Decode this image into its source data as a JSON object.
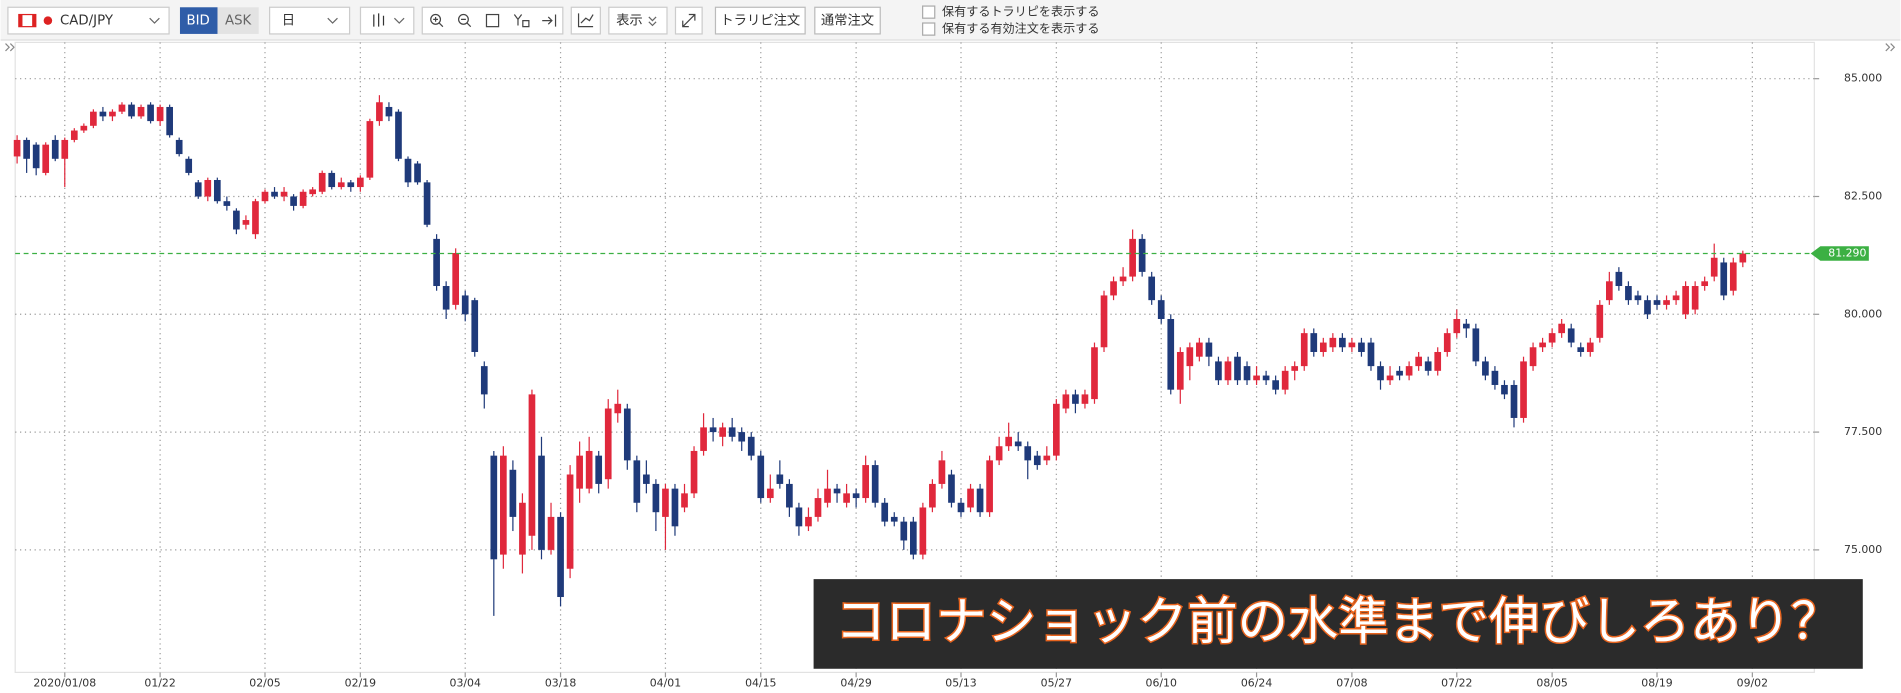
{
  "toolbar": {
    "pair": "CAD/JPY",
    "bid": "BID",
    "ask": "ASK",
    "timeframe": "日",
    "display": "表示",
    "trarip_order": "トラリピ注文",
    "normal_order": "通常注文",
    "checkboxes": [
      "保有するトラリピを表示する",
      "保有する有効注文を表示する"
    ]
  },
  "chart_data": {
    "type": "candlestick",
    "up_color": "#e0283c",
    "down_color": "#1f3a7a",
    "xlim": [
      -0.2,
      188.5
    ],
    "xticks": [
      {
        "value": 5,
        "label": "2020/01/08"
      },
      {
        "value": 15,
        "label": "01/22"
      },
      {
        "value": 26,
        "label": "02/05"
      },
      {
        "value": 36,
        "label": "02/19"
      },
      {
        "value": 47,
        "label": "03/04"
      },
      {
        "value": 57,
        "label": "03/18"
      },
      {
        "value": 68,
        "label": "04/01"
      },
      {
        "value": 78,
        "label": "04/15"
      },
      {
        "value": 88,
        "label": "04/29"
      },
      {
        "value": 99,
        "label": "05/13"
      },
      {
        "value": 109,
        "label": "05/27"
      },
      {
        "value": 120,
        "label": "06/10"
      },
      {
        "value": 130,
        "label": "06/24"
      },
      {
        "value": 140,
        "label": "07/08"
      },
      {
        "value": 151,
        "label": "07/22"
      },
      {
        "value": 161,
        "label": "08/05"
      },
      {
        "value": 172,
        "label": "08/19"
      },
      {
        "value": 182,
        "label": "09/02"
      }
    ],
    "ylim": [
      72.4,
      85.77
    ],
    "yticks": [
      {
        "value": 75,
        "label": "75.000"
      },
      {
        "value": 77.5,
        "label": "77.500"
      },
      {
        "value": 80,
        "label": "80.000"
      },
      {
        "value": 82.5,
        "label": "82.500"
      },
      {
        "value": 85,
        "label": "85.000"
      }
    ],
    "grid": true,
    "current_price": {
      "value": 81.29,
      "label": "81.290",
      "color": "#3cb043"
    },
    "annotation": "コロナショック前の水準まで伸びしろあり？",
    "open": [
      83.35,
      83.7,
      83.6,
      83.0,
      83.7,
      83.3,
      83.7,
      83.9,
      84.0,
      84.3,
      84.2,
      84.3,
      84.45,
      84.2,
      84.45,
      84.1,
      84.4,
      83.7,
      83.3,
      82.8,
      82.5,
      82.85,
      82.4,
      82.2,
      81.9,
      81.7,
      82.4,
      82.6,
      82.5,
      82.5,
      82.3,
      82.55,
      82.6,
      83.0,
      82.7,
      82.8,
      82.7,
      82.9,
      84.1,
      84.4,
      84.3,
      83.3,
      83.2,
      82.8,
      81.6,
      80.6,
      80.2,
      80.4,
      80.3,
      78.9,
      77.0,
      74.9,
      76.7,
      74.9,
      75.3,
      77.0,
      75.0,
      75.7,
      74.6,
      76.3,
      76.3,
      77.0,
      76.5,
      77.9,
      78.0,
      76.9,
      76.6,
      76.4,
      75.7,
      76.3,
      75.9,
      76.2,
      77.1,
      77.6,
      77.4,
      77.6,
      77.5,
      77.4,
      77.0,
      76.1,
      76.6,
      76.4,
      75.9,
      75.5,
      75.7,
      76.0,
      76.3,
      76.0,
      76.2,
      76.1,
      76.8,
      76.0,
      75.7,
      75.6,
      75.6,
      74.9,
      75.9,
      76.4,
      76.6,
      76.0,
      75.9,
      76.3,
      75.8,
      76.9,
      77.2,
      77.3,
      77.2,
      77.0,
      76.9,
      77.0,
      78.0,
      78.3,
      78.1,
      78.2,
      79.3,
      80.4,
      80.7,
      80.8,
      81.6,
      80.8,
      80.3,
      79.9,
      78.4,
      78.9,
      79.1,
      79.4,
      79.0,
      78.6,
      79.1,
      78.9,
      78.6,
      78.7,
      78.6,
      78.4,
      78.8,
      78.9,
      79.6,
      79.2,
      79.3,
      79.5,
      79.3,
      79.4,
      79.4,
      78.9,
      78.6,
      78.8,
      78.7,
      78.9,
      79.0,
      78.8,
      79.2,
      79.6,
      79.8,
      79.7,
      79.0,
      78.8,
      78.5,
      78.5,
      77.8,
      78.9,
      79.3,
      79.4,
      79.6,
      79.7,
      79.3,
      79.2,
      79.5,
      80.3,
      80.9,
      80.6,
      80.4,
      80.3,
      80.3,
      80.2,
      80.3,
      80.0,
      80.1,
      80.6,
      80.8,
      81.1,
      80.5,
      81.1
    ],
    "high": [
      83.8,
      83.75,
      83.65,
      83.65,
      83.8,
      83.75,
      83.95,
      84.05,
      84.35,
      84.4,
      84.35,
      84.5,
      84.5,
      84.45,
      84.5,
      84.45,
      84.45,
      83.75,
      83.35,
      82.85,
      82.9,
      82.9,
      82.5,
      82.25,
      82.1,
      82.45,
      82.65,
      82.7,
      82.7,
      82.55,
      82.65,
      82.7,
      83.05,
      83.05,
      82.9,
      82.85,
      82.95,
      84.15,
      84.65,
      84.5,
      84.35,
      83.35,
      83.25,
      82.85,
      81.7,
      80.7,
      81.4,
      80.5,
      80.35,
      79.0,
      77.1,
      77.2,
      76.9,
      76.2,
      78.4,
      77.4,
      76.0,
      75.8,
      76.8,
      77.3,
      77.4,
      77.1,
      78.2,
      78.4,
      78.1,
      77.0,
      76.9,
      76.5,
      76.4,
      76.4,
      76.4,
      77.2,
      77.9,
      77.8,
      77.7,
      77.8,
      77.6,
      77.5,
      77.1,
      76.6,
      76.9,
      76.5,
      76.0,
      75.9,
      76.3,
      76.7,
      76.4,
      76.4,
      76.3,
      77.0,
      76.9,
      76.1,
      75.8,
      75.7,
      75.7,
      76.0,
      76.5,
      77.1,
      76.7,
      76.1,
      76.4,
      76.4,
      77.0,
      77.4,
      77.7,
      77.5,
      77.3,
      77.1,
      77.2,
      78.2,
      78.4,
      78.4,
      78.4,
      79.4,
      80.5,
      80.8,
      81.0,
      81.8,
      81.7,
      80.9,
      80.4,
      80.0,
      79.3,
      79.4,
      79.5,
      79.5,
      79.1,
      79.1,
      79.2,
      79.0,
      78.9,
      78.8,
      78.7,
      78.9,
      79.0,
      79.7,
      79.7,
      79.5,
      79.6,
      79.6,
      79.5,
      79.5,
      79.5,
      79.0,
      78.9,
      78.9,
      79.0,
      79.2,
      79.1,
      79.3,
      79.7,
      80.1,
      79.9,
      79.8,
      79.1,
      78.9,
      78.6,
      78.6,
      79.1,
      79.4,
      79.5,
      79.7,
      79.9,
      79.8,
      79.4,
      79.5,
      80.3,
      80.9,
      81.0,
      80.7,
      80.5,
      80.4,
      80.4,
      80.4,
      80.5,
      80.7,
      80.7,
      80.8,
      81.5,
      81.2,
      81.2,
      81.35
    ],
    "low": [
      83.2,
      83.0,
      82.95,
      82.95,
      83.25,
      82.7,
      83.65,
      83.85,
      83.95,
      84.1,
      84.1,
      84.25,
      84.15,
      84.15,
      84.05,
      84.0,
      83.75,
      83.35,
      82.95,
      82.45,
      82.4,
      82.35,
      82.2,
      81.7,
      81.8,
      81.6,
      82.35,
      82.45,
      82.4,
      82.2,
      82.25,
      82.5,
      82.55,
      82.65,
      82.65,
      82.6,
      82.6,
      82.85,
      84.0,
      84.1,
      83.25,
      82.7,
      82.75,
      81.85,
      80.5,
      79.9,
      80.1,
      79.85,
      79.1,
      78.0,
      73.6,
      74.6,
      75.4,
      74.5,
      75.0,
      74.8,
      74.9,
      73.8,
      74.4,
      76.0,
      76.2,
      76.2,
      76.3,
      77.7,
      76.7,
      75.8,
      76.2,
      75.4,
      75.0,
      75.3,
      75.8,
      76.1,
      77.0,
      77.3,
      77.2,
      77.3,
      77.1,
      76.9,
      76.0,
      76.0,
      76.3,
      75.7,
      75.3,
      75.4,
      75.6,
      75.9,
      76.0,
      75.9,
      75.9,
      76.0,
      75.9,
      75.5,
      75.5,
      75.0,
      74.8,
      74.8,
      75.8,
      76.3,
      75.9,
      75.7,
      75.8,
      75.7,
      75.7,
      76.8,
      77.1,
      77.1,
      76.5,
      76.7,
      76.8,
      76.9,
      77.9,
      77.9,
      78.0,
      78.1,
      79.2,
      80.3,
      80.6,
      80.7,
      80.8,
      80.2,
      79.8,
      78.3,
      78.1,
      78.6,
      79.0,
      78.9,
      78.5,
      78.5,
      78.5,
      78.5,
      78.5,
      78.5,
      78.3,
      78.3,
      78.6,
      78.8,
      79.1,
      79.1,
      79.2,
      79.2,
      79.2,
      79.1,
      78.8,
      78.4,
      78.5,
      78.6,
      78.6,
      78.8,
      78.7,
      78.7,
      79.1,
      79.5,
      79.5,
      78.9,
      78.6,
      78.4,
      78.2,
      77.6,
      77.7,
      78.8,
      79.2,
      79.3,
      79.5,
      79.3,
      79.1,
      79.1,
      79.4,
      80.2,
      80.5,
      80.2,
      80.2,
      79.9,
      80.1,
      80.1,
      80.2,
      79.9,
      80.0,
      80.5,
      80.7,
      80.3,
      80.4,
      81.0
    ],
    "close": [
      83.7,
      83.3,
      83.1,
      83.6,
      83.3,
      83.7,
      83.9,
      84.0,
      84.3,
      84.2,
      84.3,
      84.45,
      84.2,
      84.4,
      84.1,
      84.4,
      83.8,
      83.4,
      83.0,
      82.5,
      82.85,
      82.4,
      82.3,
      81.8,
      82.0,
      82.4,
      82.6,
      82.5,
      82.6,
      82.3,
      82.6,
      82.65,
      83.0,
      82.7,
      82.8,
      82.7,
      82.9,
      84.1,
      84.5,
      84.2,
      83.3,
      82.8,
      82.8,
      81.9,
      80.6,
      80.1,
      81.3,
      80.0,
      79.2,
      78.3,
      74.8,
      77.0,
      75.7,
      76.0,
      78.3,
      75.0,
      75.7,
      74.0,
      76.6,
      77.0,
      77.1,
      76.4,
      78.0,
      78.1,
      76.9,
      76.0,
      76.4,
      75.8,
      76.3,
      75.5,
      76.2,
      77.1,
      77.6,
      77.5,
      77.6,
      77.4,
      77.3,
      77.0,
      76.1,
      76.3,
      76.4,
      75.9,
      75.5,
      75.7,
      76.1,
      76.3,
      76.2,
      76.2,
      76.1,
      76.8,
      76.0,
      75.6,
      75.6,
      75.2,
      74.9,
      75.9,
      76.4,
      76.9,
      76.0,
      75.8,
      76.3,
      75.8,
      76.9,
      77.2,
      77.4,
      77.2,
      76.9,
      76.8,
      77.0,
      78.1,
      78.3,
      78.1,
      78.3,
      79.3,
      80.4,
      80.7,
      80.8,
      81.6,
      80.9,
      80.3,
      79.9,
      78.4,
      79.2,
      79.3,
      79.4,
      79.1,
      78.6,
      79.0,
      78.6,
      78.6,
      78.7,
      78.6,
      78.4,
      78.8,
      78.9,
      79.6,
      79.2,
      79.4,
      79.5,
      79.3,
      79.4,
      79.2,
      78.9,
      78.6,
      78.7,
      78.7,
      78.9,
      79.1,
      78.8,
      79.2,
      79.6,
      79.9,
      79.7,
      79.0,
      78.7,
      78.5,
      78.3,
      77.8,
      79.0,
      79.3,
      79.4,
      79.6,
      79.8,
      79.4,
      79.2,
      79.4,
      80.2,
      80.7,
      80.6,
      80.3,
      80.3,
      80.0,
      80.2,
      80.3,
      80.4,
      80.6,
      80.6,
      80.7,
      81.2,
      80.4,
      81.1,
      81.29
    ]
  }
}
